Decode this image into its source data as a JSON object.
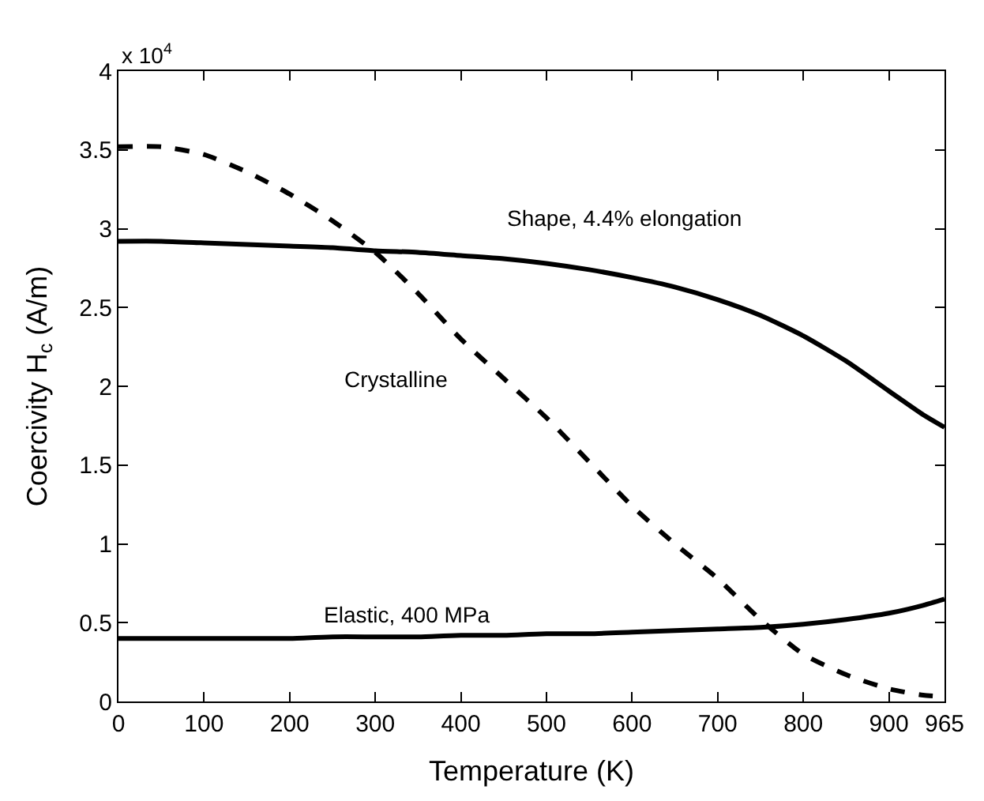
{
  "chart_data": {
    "type": "line",
    "xlabel": "Temperature (K)",
    "ylabel": "Coercivity H$_{c}$ (A/m)",
    "annotations": [
      "x 10$^{4}$"
    ],
    "x": [
      0,
      50,
      100,
      150,
      200,
      250,
      300,
      350,
      400,
      450,
      500,
      550,
      600,
      650,
      700,
      750,
      800,
      850,
      900,
      940,
      965
    ],
    "series": [
      {
        "name": "Shape, 4.4% elongation",
        "color": "#000000",
        "line_style": "solid",
        "values": [
          2.92,
          2.92,
          2.91,
          2.9,
          2.89,
          2.88,
          2.86,
          2.85,
          2.83,
          2.81,
          2.78,
          2.74,
          2.69,
          2.63,
          2.55,
          2.45,
          2.32,
          2.16,
          1.97,
          1.82,
          1.74
        ]
      },
      {
        "name": "Crystalline",
        "color": "#000000",
        "line_style": "dashed",
        "values": [
          3.52,
          3.52,
          3.47,
          3.36,
          3.22,
          3.05,
          2.85,
          2.59,
          2.3,
          2.05,
          1.8,
          1.52,
          1.24,
          1.0,
          0.78,
          0.52,
          0.3,
          0.17,
          0.08,
          0.04,
          0.03
        ]
      },
      {
        "name": "Elastic, 400 MPa",
        "color": "#000000",
        "line_style": "solid",
        "values": [
          0.4,
          0.4,
          0.4,
          0.4,
          0.4,
          0.41,
          0.41,
          0.41,
          0.42,
          0.42,
          0.43,
          0.43,
          0.44,
          0.45,
          0.46,
          0.47,
          0.49,
          0.52,
          0.56,
          0.61,
          0.65
        ]
      }
    ],
    "xlim": [
      0,
      965
    ],
    "xticks": [
      0,
      100,
      200,
      300,
      400,
      500,
      600,
      700,
      800,
      900,
      965
    ],
    "ylim": [
      0,
      4
    ],
    "yticks": [
      0,
      0.5,
      1,
      1.5,
      2,
      2.5,
      3,
      3.5,
      4
    ],
    "legend": false
  }
}
